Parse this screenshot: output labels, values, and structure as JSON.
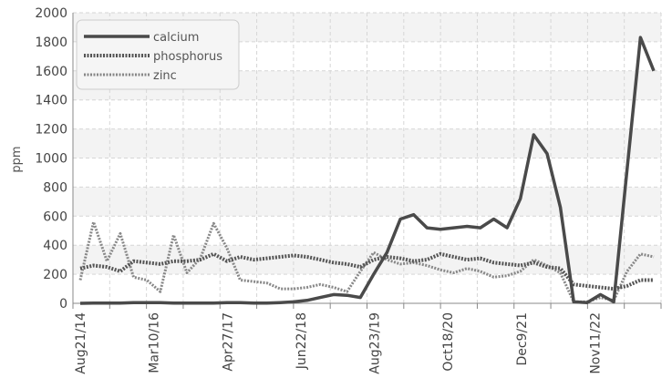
{
  "chart_data": {
    "type": "line",
    "title": "",
    "xlabel": "",
    "ylabel": "ppm",
    "ylim": [
      0,
      2000
    ],
    "yticks": [
      0,
      200,
      400,
      600,
      800,
      1000,
      1200,
      1400,
      1600,
      1800,
      2000
    ],
    "grid": true,
    "legend_position": "top-left",
    "x_tick_labels": [
      "Aug21/14",
      "Mar10/16",
      "Apr27/17",
      "Jun22/18",
      "Aug23/19",
      "Oct18/20",
      "Dec9/21",
      "Nov11/22"
    ],
    "series": [
      {
        "name": "calcium",
        "color": "#4a4a4a",
        "style": "solid",
        "values": [
          0,
          2,
          2,
          2,
          5,
          5,
          5,
          2,
          2,
          2,
          2,
          5,
          5,
          2,
          2,
          5,
          10,
          20,
          40,
          60,
          55,
          40,
          200,
          350,
          580,
          610,
          520,
          510,
          520,
          530,
          520,
          580,
          520,
          720,
          1160,
          1030,
          660,
          10,
          5,
          60,
          10,
          920,
          1830,
          1600
        ]
      },
      {
        "name": "phosphorus",
        "color": "#555555",
        "style": "dotted",
        "values": [
          240,
          260,
          250,
          220,
          290,
          280,
          270,
          290,
          290,
          300,
          340,
          290,
          320,
          300,
          310,
          320,
          330,
          320,
          300,
          280,
          270,
          250,
          300,
          320,
          310,
          290,
          300,
          340,
          320,
          300,
          310,
          280,
          270,
          260,
          280,
          250,
          240,
          130,
          120,
          110,
          100,
          120,
          160,
          160
        ]
      },
      {
        "name": "zinc",
        "color": "#888888",
        "style": "dotted",
        "values": [
          160,
          560,
          290,
          480,
          180,
          160,
          80,
          470,
          210,
          310,
          550,
          380,
          160,
          150,
          140,
          100,
          100,
          110,
          130,
          110,
          80,
          220,
          350,
          300,
          270,
          280,
          260,
          230,
          210,
          240,
          220,
          180,
          190,
          220,
          300,
          260,
          210,
          10,
          10,
          40,
          20,
          220,
          340,
          320
        ]
      }
    ]
  }
}
